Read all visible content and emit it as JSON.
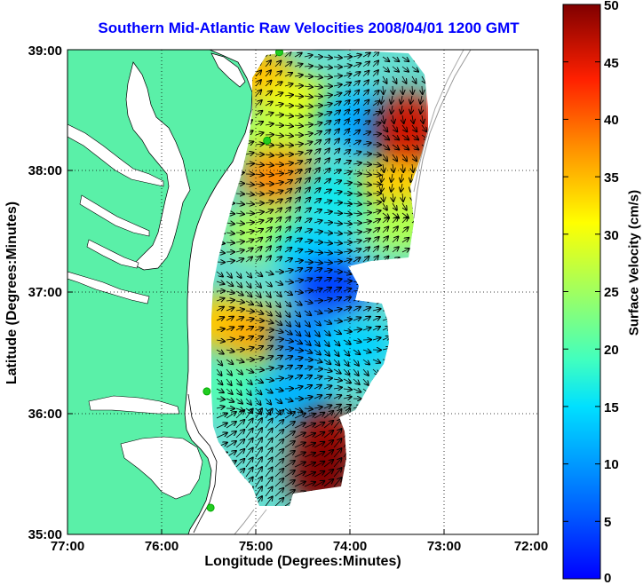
{
  "title": "Southern Mid-Atlantic Raw Velocities 2008/04/01 1200 GMT",
  "x_axis": {
    "label": "Longitude (Degrees:Minutes)",
    "ticks": [
      "77:00",
      "76:00",
      "75:00",
      "74:00",
      "73:00",
      "72:00"
    ]
  },
  "y_axis": {
    "label": "Latitude (Degrees:Minutes)",
    "ticks": [
      "39:00",
      "38:00",
      "37:00",
      "36:00",
      "35:00"
    ]
  },
  "colorbar": {
    "label": "Surface Velocity (cm/s)",
    "ticks": [
      "50",
      "45",
      "40",
      "35",
      "30",
      "25",
      "20",
      "15",
      "10",
      "5",
      "0"
    ]
  },
  "colors": {
    "title": "#0000ff",
    "land": "#5af0a8",
    "ocean": "#ffffff",
    "grid": "#000000",
    "arrows": "#000000",
    "site_marker": "#22cc22"
  },
  "chart_data": {
    "type": "heatmap",
    "title": "Southern Mid-Atlantic Raw Velocities 2008/04/01 1200 GMT",
    "xlabel": "Longitude (Degrees:Minutes)",
    "ylabel": "Latitude (Degrees:Minutes)",
    "colorbar_label": "Surface Velocity (cm/s)",
    "xlim": [
      -77,
      -72
    ],
    "ylim": [
      35,
      39
    ],
    "clim": [
      0,
      50
    ],
    "colormap": "jet",
    "grid": true,
    "site_markers_deg": [
      [
        -74.75,
        38.98
      ],
      [
        -74.88,
        38.25
      ],
      [
        -75.52,
        36.18
      ],
      [
        -75.48,
        35.22
      ]
    ],
    "speed_regions": [
      {
        "lon": -75.0,
        "lat": 38.8,
        "speed": 35
      },
      {
        "lon": -74.55,
        "lat": 38.55,
        "speed": 30
      },
      {
        "lon": -74.8,
        "lat": 38.3,
        "speed": 27
      },
      {
        "lon": -74.75,
        "lat": 37.95,
        "speed": 38
      },
      {
        "lon": -74.15,
        "lat": 37.8,
        "speed": 16
      },
      {
        "lon": -73.95,
        "lat": 38.45,
        "speed": 12
      },
      {
        "lon": -73.65,
        "lat": 38.3,
        "speed": 10
      },
      {
        "lon": -73.38,
        "lat": 38.35,
        "speed": 46
      },
      {
        "lon": -73.5,
        "lat": 37.9,
        "speed": 34
      },
      {
        "lon": -73.45,
        "lat": 37.55,
        "speed": 26
      },
      {
        "lon": -74.9,
        "lat": 37.5,
        "speed": 26
      },
      {
        "lon": -74.4,
        "lat": 37.35,
        "speed": 14
      },
      {
        "lon": -74.2,
        "lat": 37.05,
        "speed": 4
      },
      {
        "lon": -75.35,
        "lat": 36.75,
        "speed": 34
      },
      {
        "lon": -74.95,
        "lat": 36.65,
        "speed": 36
      },
      {
        "lon": -74.45,
        "lat": 36.6,
        "speed": 8
      },
      {
        "lon": -73.95,
        "lat": 36.55,
        "speed": 14
      },
      {
        "lon": -75.2,
        "lat": 36.2,
        "speed": 20
      },
      {
        "lon": -74.6,
        "lat": 36.15,
        "speed": 12
      },
      {
        "lon": -74.25,
        "lat": 35.75,
        "speed": 48
      },
      {
        "lon": -74.3,
        "lat": 35.5,
        "speed": 50
      }
    ]
  }
}
